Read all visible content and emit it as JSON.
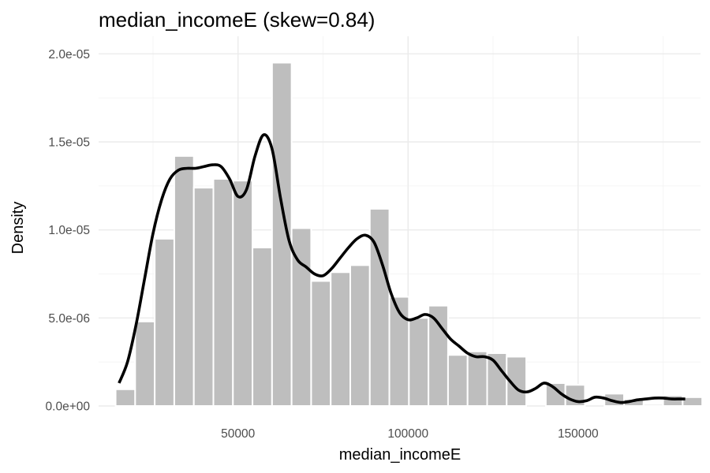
{
  "chart_data": {
    "type": "histogram",
    "title": "median_incomeE (skew=0.84)",
    "xlabel": "median_incomeE",
    "ylabel": "Density",
    "xlim": [
      9000,
      186000
    ],
    "ylim": [
      0,
      2.1e-05
    ],
    "x_ticks": [
      {
        "value": 50000,
        "label": "50000"
      },
      {
        "value": 100000,
        "label": "100000"
      },
      {
        "value": 150000,
        "label": "150000"
      }
    ],
    "x_minor": [
      25000,
      75000,
      125000,
      175000
    ],
    "y_ticks": [
      {
        "value": 0,
        "label": "0.0e+00"
      },
      {
        "value": 5e-06,
        "label": "5.0e-06"
      },
      {
        "value": 1e-05,
        "label": "1.0e-05"
      },
      {
        "value": 1.5e-05,
        "label": "1.5e-05"
      },
      {
        "value": 2e-05,
        "label": "2.0e-05"
      }
    ],
    "y_minor": [
      2.5e-06,
      7.5e-06,
      1.25e-05,
      1.75e-05
    ],
    "grid": true,
    "bins": [
      {
        "x0": 14000,
        "x1": 19750,
        "density": 9.5e-07
      },
      {
        "x0": 19750,
        "x1": 25500,
        "density": 4.8e-06
      },
      {
        "x0": 25500,
        "x1": 31250,
        "density": 9.5e-06
      },
      {
        "x0": 31250,
        "x1": 37000,
        "density": 1.42e-05
      },
      {
        "x0": 37000,
        "x1": 42750,
        "density": 1.24e-05
      },
      {
        "x0": 42750,
        "x1": 48500,
        "density": 1.29e-05
      },
      {
        "x0": 48500,
        "x1": 54250,
        "density": 1.28e-05
      },
      {
        "x0": 54250,
        "x1": 60000,
        "density": 9e-06
      },
      {
        "x0": 60000,
        "x1": 65750,
        "density": 1.95e-05
      },
      {
        "x0": 65750,
        "x1": 71500,
        "density": 1.01e-05
      },
      {
        "x0": 71500,
        "x1": 77250,
        "density": 7.1e-06
      },
      {
        "x0": 77250,
        "x1": 83000,
        "density": 7.6e-06
      },
      {
        "x0": 83000,
        "x1": 88750,
        "density": 8e-06
      },
      {
        "x0": 88750,
        "x1": 94500,
        "density": 1.12e-05
      },
      {
        "x0": 94500,
        "x1": 100250,
        "density": 6.2e-06
      },
      {
        "x0": 100250,
        "x1": 106000,
        "density": 5e-06
      },
      {
        "x0": 106000,
        "x1": 111750,
        "density": 5.7e-06
      },
      {
        "x0": 111750,
        "x1": 117500,
        "density": 2.9e-06
      },
      {
        "x0": 117500,
        "x1": 123250,
        "density": 3.1e-06
      },
      {
        "x0": 123250,
        "x1": 129000,
        "density": 3e-06
      },
      {
        "x0": 129000,
        "x1": 134750,
        "density": 2.8e-06
      },
      {
        "x0": 134750,
        "x1": 140500,
        "density": 0
      },
      {
        "x0": 140500,
        "x1": 146250,
        "density": 1.3e-06
      },
      {
        "x0": 146250,
        "x1": 152000,
        "density": 1.2e-06
      },
      {
        "x0": 152000,
        "x1": 157750,
        "density": 0
      },
      {
        "x0": 157750,
        "x1": 163500,
        "density": 7e-07
      },
      {
        "x0": 163500,
        "x1": 169250,
        "density": 4e-07
      },
      {
        "x0": 169250,
        "x1": 175000,
        "density": 1e-07
      },
      {
        "x0": 175000,
        "x1": 180750,
        "density": 6e-07
      },
      {
        "x0": 180750,
        "x1": 186500,
        "density": 5e-07
      }
    ],
    "density_curve": {
      "x": [
        15000,
        17500,
        20000,
        22500,
        25000,
        27500,
        30000,
        32500,
        35000,
        37500,
        40000,
        42500,
        45000,
        47500,
        50000,
        52500,
        55000,
        57500,
        60000,
        62500,
        65000,
        67500,
        70000,
        72500,
        75000,
        77500,
        80000,
        82500,
        85000,
        87500,
        90000,
        92500,
        95000,
        97500,
        100000,
        102500,
        105000,
        107500,
        110000,
        112500,
        115000,
        117500,
        120000,
        122500,
        125000,
        127500,
        130000,
        132500,
        135000,
        137500,
        140000,
        142500,
        145000,
        147500,
        150000,
        152500,
        155000,
        157500,
        160000,
        162500,
        165000,
        167500,
        170000,
        172500,
        175000,
        177500,
        180000,
        181500
      ],
      "y": [
        1.3e-06,
        2.5e-06,
        4.6e-06,
        7.2e-06,
        9.8e-06,
        1.17e-05,
        1.29e-05,
        1.34e-05,
        1.35e-05,
        1.35e-05,
        1.36e-05,
        1.37e-05,
        1.36e-05,
        1.29e-05,
        1.19e-05,
        1.23e-05,
        1.42e-05,
        1.54e-05,
        1.46e-05,
        1.18e-05,
        9.4e-06,
        8.3e-06,
        7.9e-06,
        7.5e-06,
        7.4e-06,
        7.8e-06,
        8.4e-06,
        9e-06,
        9.5e-06,
        9.7e-06,
        9.3e-06,
        8e-06,
        6.4e-06,
        5.3e-06,
        4.9e-06,
        5e-06,
        5.2e-06,
        5e-06,
        4.4e-06,
        3.8e-06,
        3.4e-06,
        3e-06,
        2.8e-06,
        2.8e-06,
        2.6e-06,
        2e-06,
        1.4e-06,
        9e-07,
        8e-07,
        1e-06,
        1.3e-06,
        1.1e-06,
        7e-07,
        4e-07,
        2.5e-07,
        3e-07,
        5e-07,
        4.5e-07,
        3e-07,
        2e-07,
        2.5e-07,
        3.5e-07,
        4e-07,
        4.5e-07,
        4.5e-07,
        4e-07,
        4e-07,
        4e-07
      ]
    },
    "colors": {
      "bar_fill": "#bebebe",
      "bar_outline": "#ffffff",
      "curve": "#000000",
      "background": "#ffffff"
    }
  }
}
